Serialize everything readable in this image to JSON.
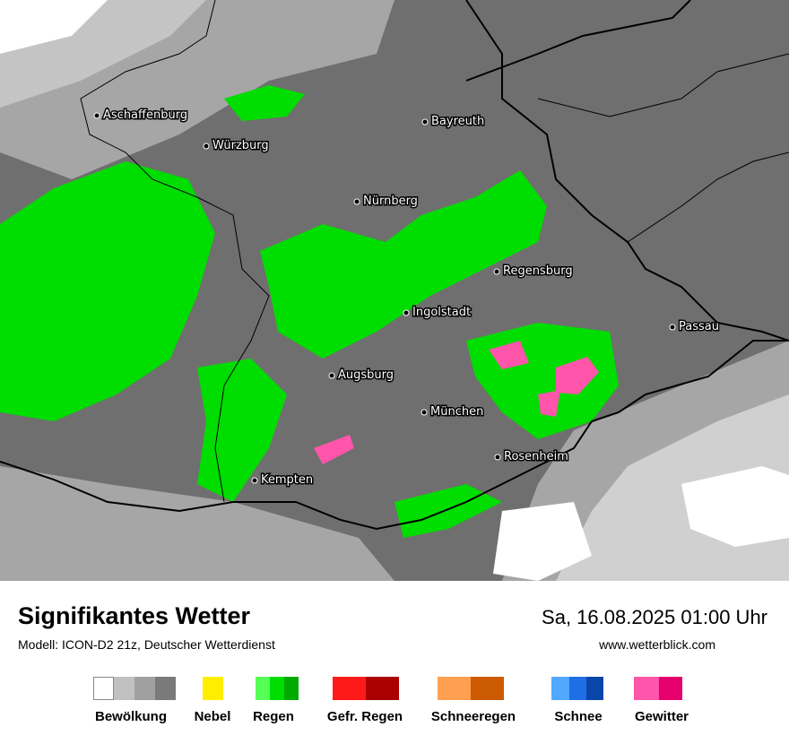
{
  "map": {
    "cities": [
      {
        "name": "Aschaffenburg"
      },
      {
        "name": "Würzburg"
      },
      {
        "name": "Bayreuth"
      },
      {
        "name": "Nürnberg"
      },
      {
        "name": "Regensburg"
      },
      {
        "name": "Ingolstadt"
      },
      {
        "name": "Passau"
      },
      {
        "name": "Augsburg"
      },
      {
        "name": "München"
      },
      {
        "name": "Rosenheim"
      },
      {
        "name": "Kempten"
      }
    ]
  },
  "footer": {
    "title": "Signifikantes Wetter",
    "subtitle": "Modell: ICON-D2 21z, Deutscher Wetterdienst",
    "datetime": "Sa, 16.08.2025 01:00 Uhr",
    "website": "www.wetterblick.com"
  },
  "legend": [
    {
      "label": "Bewölkung"
    },
    {
      "label": "Nebel"
    },
    {
      "label": "Regen"
    },
    {
      "label": "Gefr. Regen"
    },
    {
      "label": "Schneeregen"
    },
    {
      "label": "Schnee"
    },
    {
      "label": "Gewitter"
    }
  ]
}
